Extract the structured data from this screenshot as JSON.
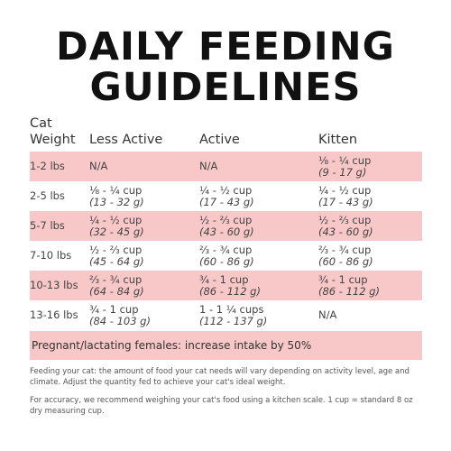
{
  "title": {
    "line1": "DAILY FEEDING",
    "line2": "GUIDELINES"
  },
  "table": {
    "headers": {
      "weight_line1": "Cat",
      "weight_line2": "Weight",
      "less_active": "Less Active",
      "active": "Active",
      "kitten": "Kitten"
    },
    "rows": [
      {
        "weight": "1-2 lbs",
        "less_active": {
          "cups": "N/A",
          "grams": ""
        },
        "active": {
          "cups": "N/A",
          "grams": ""
        },
        "kitten": {
          "cups": "⅛ - ¼ cup",
          "grams": "(9 - 17 g)"
        }
      },
      {
        "weight": "2-5 lbs",
        "less_active": {
          "cups": "⅛ - ¼ cup",
          "grams": "(13 - 32 g)"
        },
        "active": {
          "cups": "¼ - ½ cup",
          "grams": "(17 - 43 g)"
        },
        "kitten": {
          "cups": "¼ - ½ cup",
          "grams": "(17 - 43 g)"
        }
      },
      {
        "weight": "5-7 lbs",
        "less_active": {
          "cups": "¼ - ½ cup",
          "grams": "(32 - 45 g)"
        },
        "active": {
          "cups": "½ - ⅔ cup",
          "grams": "(43 - 60 g)"
        },
        "kitten": {
          "cups": "½ - ⅔ cup",
          "grams": "(43 - 60 g)"
        }
      },
      {
        "weight": "7-10 lbs",
        "less_active": {
          "cups": "½ - ⅔ cup",
          "grams": "(45 - 64 g)"
        },
        "active": {
          "cups": "⅔ - ¾ cup",
          "grams": "(60 - 86 g)"
        },
        "kitten": {
          "cups": "⅔ - ¾ cup",
          "grams": "(60 - 86 g)"
        }
      },
      {
        "weight": "10-13 lbs",
        "less_active": {
          "cups": "⅔ - ¾ cup",
          "grams": "(64 - 84 g)"
        },
        "active": {
          "cups": "¾ - 1 cup",
          "grams": "(86 - 112 g)"
        },
        "kitten": {
          "cups": "¾ - 1 cup",
          "grams": "(86 - 112 g)"
        }
      },
      {
        "weight": "13-16 lbs",
        "less_active": {
          "cups": "¾ - 1 cup",
          "grams": "(84 - 103 g)"
        },
        "active": {
          "cups": "1 - 1 ¼ cups",
          "grams": "(112 - 137 g)"
        },
        "kitten": {
          "cups": "N/A",
          "grams": ""
        }
      }
    ],
    "row_shading": [
      "pink",
      "white",
      "pink",
      "white",
      "pink",
      "white"
    ]
  },
  "banner": "Pregnant/lactating females: increase intake by 50%",
  "notes": [
    "Feeding your cat: the amount of food your cat needs will vary depending on activity level, age and climate. Adjust the quantity fed to achieve your cat's ideal weight.",
    "For accuracy, we recommend weighing your cat's food using a kitchen scale. 1 cup = standard 8 oz dry measuring cup."
  ],
  "colors": {
    "row_highlight": "#f8c7c7",
    "title": "#111111",
    "text": "#444444"
  }
}
